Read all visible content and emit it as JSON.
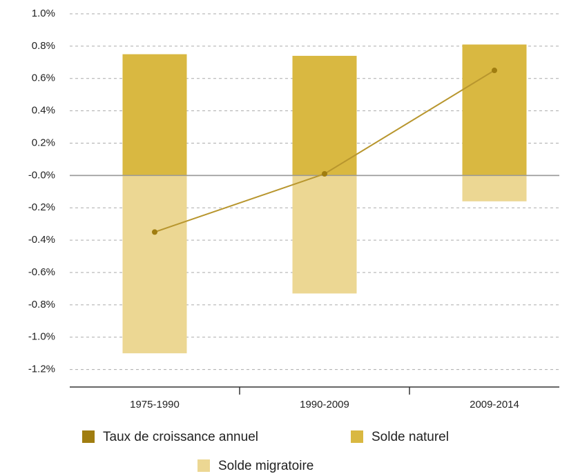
{
  "chart_data": {
    "type": "bar",
    "stacked": true,
    "categories": [
      "1975-1990",
      "1990-2009",
      "2009-2014"
    ],
    "series": [
      {
        "name": "Taux de croissance annuel",
        "type": "line",
        "color": "#a07d10",
        "line_color": "#b8962e",
        "values": [
          -0.35,
          0.01,
          0.65
        ]
      },
      {
        "name": "Solde naturel",
        "type": "bar",
        "color": "#d9b841",
        "values": [
          0.75,
          0.74,
          0.81
        ]
      },
      {
        "name": "Solde migratoire",
        "type": "bar",
        "color": "#ecd793",
        "values": [
          -1.1,
          -0.73,
          -0.16
        ]
      }
    ],
    "ylim": [
      -1.3,
      1.0
    ],
    "yticks": [
      {
        "value": 1.0,
        "label": "1.0%"
      },
      {
        "value": 0.8,
        "label": "0.8%"
      },
      {
        "value": 0.6,
        "label": "0.6%"
      },
      {
        "value": 0.4,
        "label": "0.4%"
      },
      {
        "value": 0.2,
        "label": "0.2%"
      },
      {
        "value": 0,
        "label": "-0.0%"
      },
      {
        "value": -0.2,
        "label": "-0.2%"
      },
      {
        "value": -0.4,
        "label": "-0.4%"
      },
      {
        "value": -0.6,
        "label": "-0.6%"
      },
      {
        "value": -0.8,
        "label": "-0.8%"
      },
      {
        "value": -1.0,
        "label": "-1.0%"
      },
      {
        "value": -1.2,
        "label": "-1.2%"
      }
    ],
    "grid": true
  }
}
